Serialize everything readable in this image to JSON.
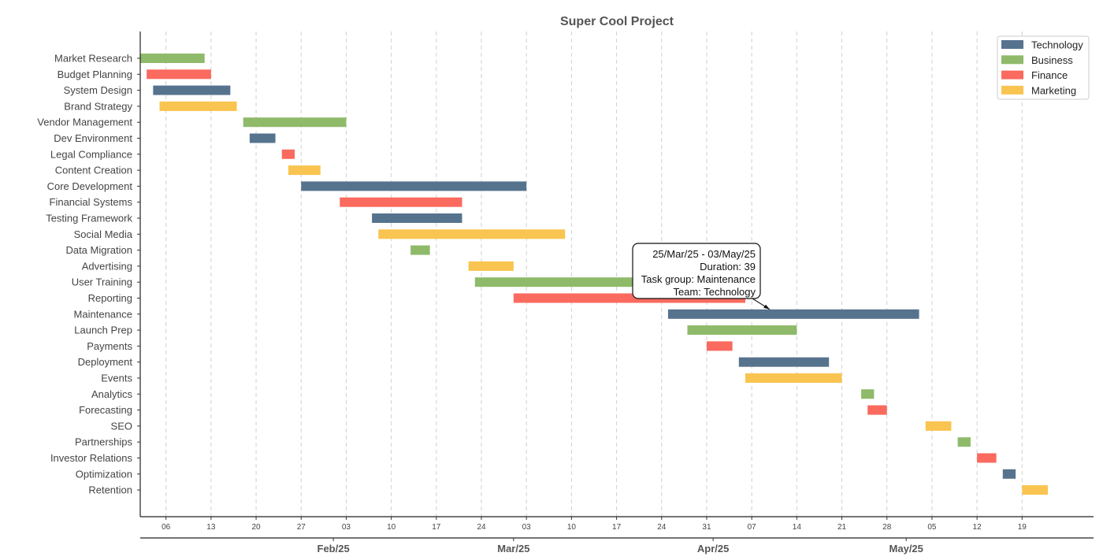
{
  "chart_data": {
    "type": "gantt",
    "title": "Super Cool Project",
    "date_range": [
      "2025-01-02",
      "2025-05-29"
    ],
    "grid": "vertical dashed at weekly ticks",
    "legend": {
      "placement": "top-right",
      "entries": [
        {
          "name": "Technology",
          "color": "#56738e"
        },
        {
          "name": "Business",
          "color": "#8fba6a"
        },
        {
          "name": "Finance",
          "color": "#fa6a5e"
        },
        {
          "name": "Marketing",
          "color": "#f9c44f"
        }
      ]
    },
    "day_ticks": [
      {
        "date": "2025-01-06",
        "label": "06"
      },
      {
        "date": "2025-01-13",
        "label": "13"
      },
      {
        "date": "2025-01-20",
        "label": "20"
      },
      {
        "date": "2025-01-27",
        "label": "27"
      },
      {
        "date": "2025-02-03",
        "label": "03"
      },
      {
        "date": "2025-02-10",
        "label": "10"
      },
      {
        "date": "2025-02-17",
        "label": "17"
      },
      {
        "date": "2025-02-24",
        "label": "24"
      },
      {
        "date": "2025-03-03",
        "label": "03"
      },
      {
        "date": "2025-03-10",
        "label": "10"
      },
      {
        "date": "2025-03-17",
        "label": "17"
      },
      {
        "date": "2025-03-24",
        "label": "24"
      },
      {
        "date": "2025-03-31",
        "label": "31"
      },
      {
        "date": "2025-04-07",
        "label": "07"
      },
      {
        "date": "2025-04-14",
        "label": "14"
      },
      {
        "date": "2025-04-21",
        "label": "21"
      },
      {
        "date": "2025-04-28",
        "label": "28"
      },
      {
        "date": "2025-05-05",
        "label": "05"
      },
      {
        "date": "2025-05-12",
        "label": "12"
      },
      {
        "date": "2025-05-19",
        "label": "19"
      }
    ],
    "month_ticks": [
      {
        "date": "2025-02-01",
        "label": "Feb/25"
      },
      {
        "date": "2025-03-01",
        "label": "Mar/25"
      },
      {
        "date": "2025-04-01",
        "label": "Apr/25"
      },
      {
        "date": "2025-05-01",
        "label": "May/25"
      }
    ],
    "tasks": [
      {
        "name": "Market Research",
        "team": "Business",
        "start": "2025-01-02",
        "end": "2025-01-12"
      },
      {
        "name": "Budget Planning",
        "team": "Finance",
        "start": "2025-01-03",
        "end": "2025-01-13"
      },
      {
        "name": "System Design",
        "team": "Technology",
        "start": "2025-01-04",
        "end": "2025-01-16"
      },
      {
        "name": "Brand Strategy",
        "team": "Marketing",
        "start": "2025-01-05",
        "end": "2025-01-17"
      },
      {
        "name": "Vendor Management",
        "team": "Business",
        "start": "2025-01-18",
        "end": "2025-02-03"
      },
      {
        "name": "Dev Environment",
        "team": "Technology",
        "start": "2025-01-19",
        "end": "2025-01-23"
      },
      {
        "name": "Legal Compliance",
        "team": "Finance",
        "start": "2025-01-24",
        "end": "2025-01-26"
      },
      {
        "name": "Content Creation",
        "team": "Marketing",
        "start": "2025-01-25",
        "end": "2025-01-30"
      },
      {
        "name": "Core Development",
        "team": "Technology",
        "start": "2025-01-27",
        "end": "2025-03-03"
      },
      {
        "name": "Financial Systems",
        "team": "Finance",
        "start": "2025-02-02",
        "end": "2025-02-21"
      },
      {
        "name": "Testing Framework",
        "team": "Technology",
        "start": "2025-02-07",
        "end": "2025-02-21"
      },
      {
        "name": "Social Media",
        "team": "Marketing",
        "start": "2025-02-08",
        "end": "2025-03-09"
      },
      {
        "name": "Data Migration",
        "team": "Business",
        "start": "2025-02-13",
        "end": "2025-02-16"
      },
      {
        "name": "Advertising",
        "team": "Marketing",
        "start": "2025-02-22",
        "end": "2025-03-01"
      },
      {
        "name": "User Training",
        "team": "Business",
        "start": "2025-02-23",
        "end": "2025-03-25"
      },
      {
        "name": "Reporting",
        "team": "Finance",
        "start": "2025-03-01",
        "end": "2025-04-06"
      },
      {
        "name": "Maintenance",
        "team": "Technology",
        "start": "2025-03-25",
        "end": "2025-05-03"
      },
      {
        "name": "Launch Prep",
        "team": "Business",
        "start": "2025-03-28",
        "end": "2025-04-14"
      },
      {
        "name": "Payments",
        "team": "Finance",
        "start": "2025-03-31",
        "end": "2025-04-04"
      },
      {
        "name": "Deployment",
        "team": "Technology",
        "start": "2025-04-05",
        "end": "2025-04-19"
      },
      {
        "name": "Events",
        "team": "Marketing",
        "start": "2025-04-06",
        "end": "2025-04-21"
      },
      {
        "name": "Analytics",
        "team": "Business",
        "start": "2025-04-24",
        "end": "2025-04-26"
      },
      {
        "name": "Forecasting",
        "team": "Finance",
        "start": "2025-04-25",
        "end": "2025-04-28"
      },
      {
        "name": "SEO",
        "team": "Marketing",
        "start": "2025-05-04",
        "end": "2025-05-08"
      },
      {
        "name": "Partnerships",
        "team": "Business",
        "start": "2025-05-09",
        "end": "2025-05-11"
      },
      {
        "name": "Investor Relations",
        "team": "Finance",
        "start": "2025-05-12",
        "end": "2025-05-15"
      },
      {
        "name": "Optimization",
        "team": "Technology",
        "start": "2025-05-16",
        "end": "2025-05-18"
      },
      {
        "name": "Retention",
        "team": "Marketing",
        "start": "2025-05-19",
        "end": "2025-05-23"
      }
    ],
    "annotation": {
      "task": "Maintenance",
      "lines": [
        "25/Mar/25 - 03/May/25",
        "Duration: 39",
        "Task group: Maintenance",
        "Team: Technology"
      ]
    }
  }
}
